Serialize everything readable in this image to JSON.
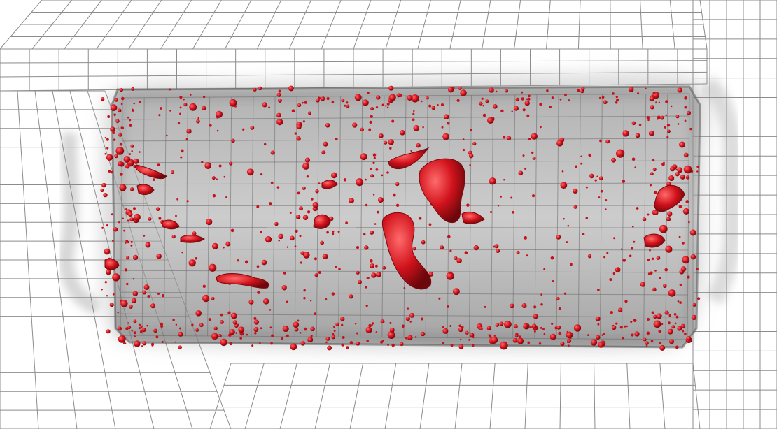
{
  "scene": {
    "description_kind": "3d-volume-render",
    "background_color": "#ffffff",
    "grid_line_color": "#8c8c8c",
    "volume_color": "#9a9a9a",
    "volume_edge_color": "#5a5a5a",
    "inclusion_color": "#c8101a",
    "inclusion_highlight_color": "#ff5a5a",
    "inclusion_shadow_color": "#7a0a0f",
    "particle_count_estimate": 900,
    "large_inclusion_count": 12
  }
}
